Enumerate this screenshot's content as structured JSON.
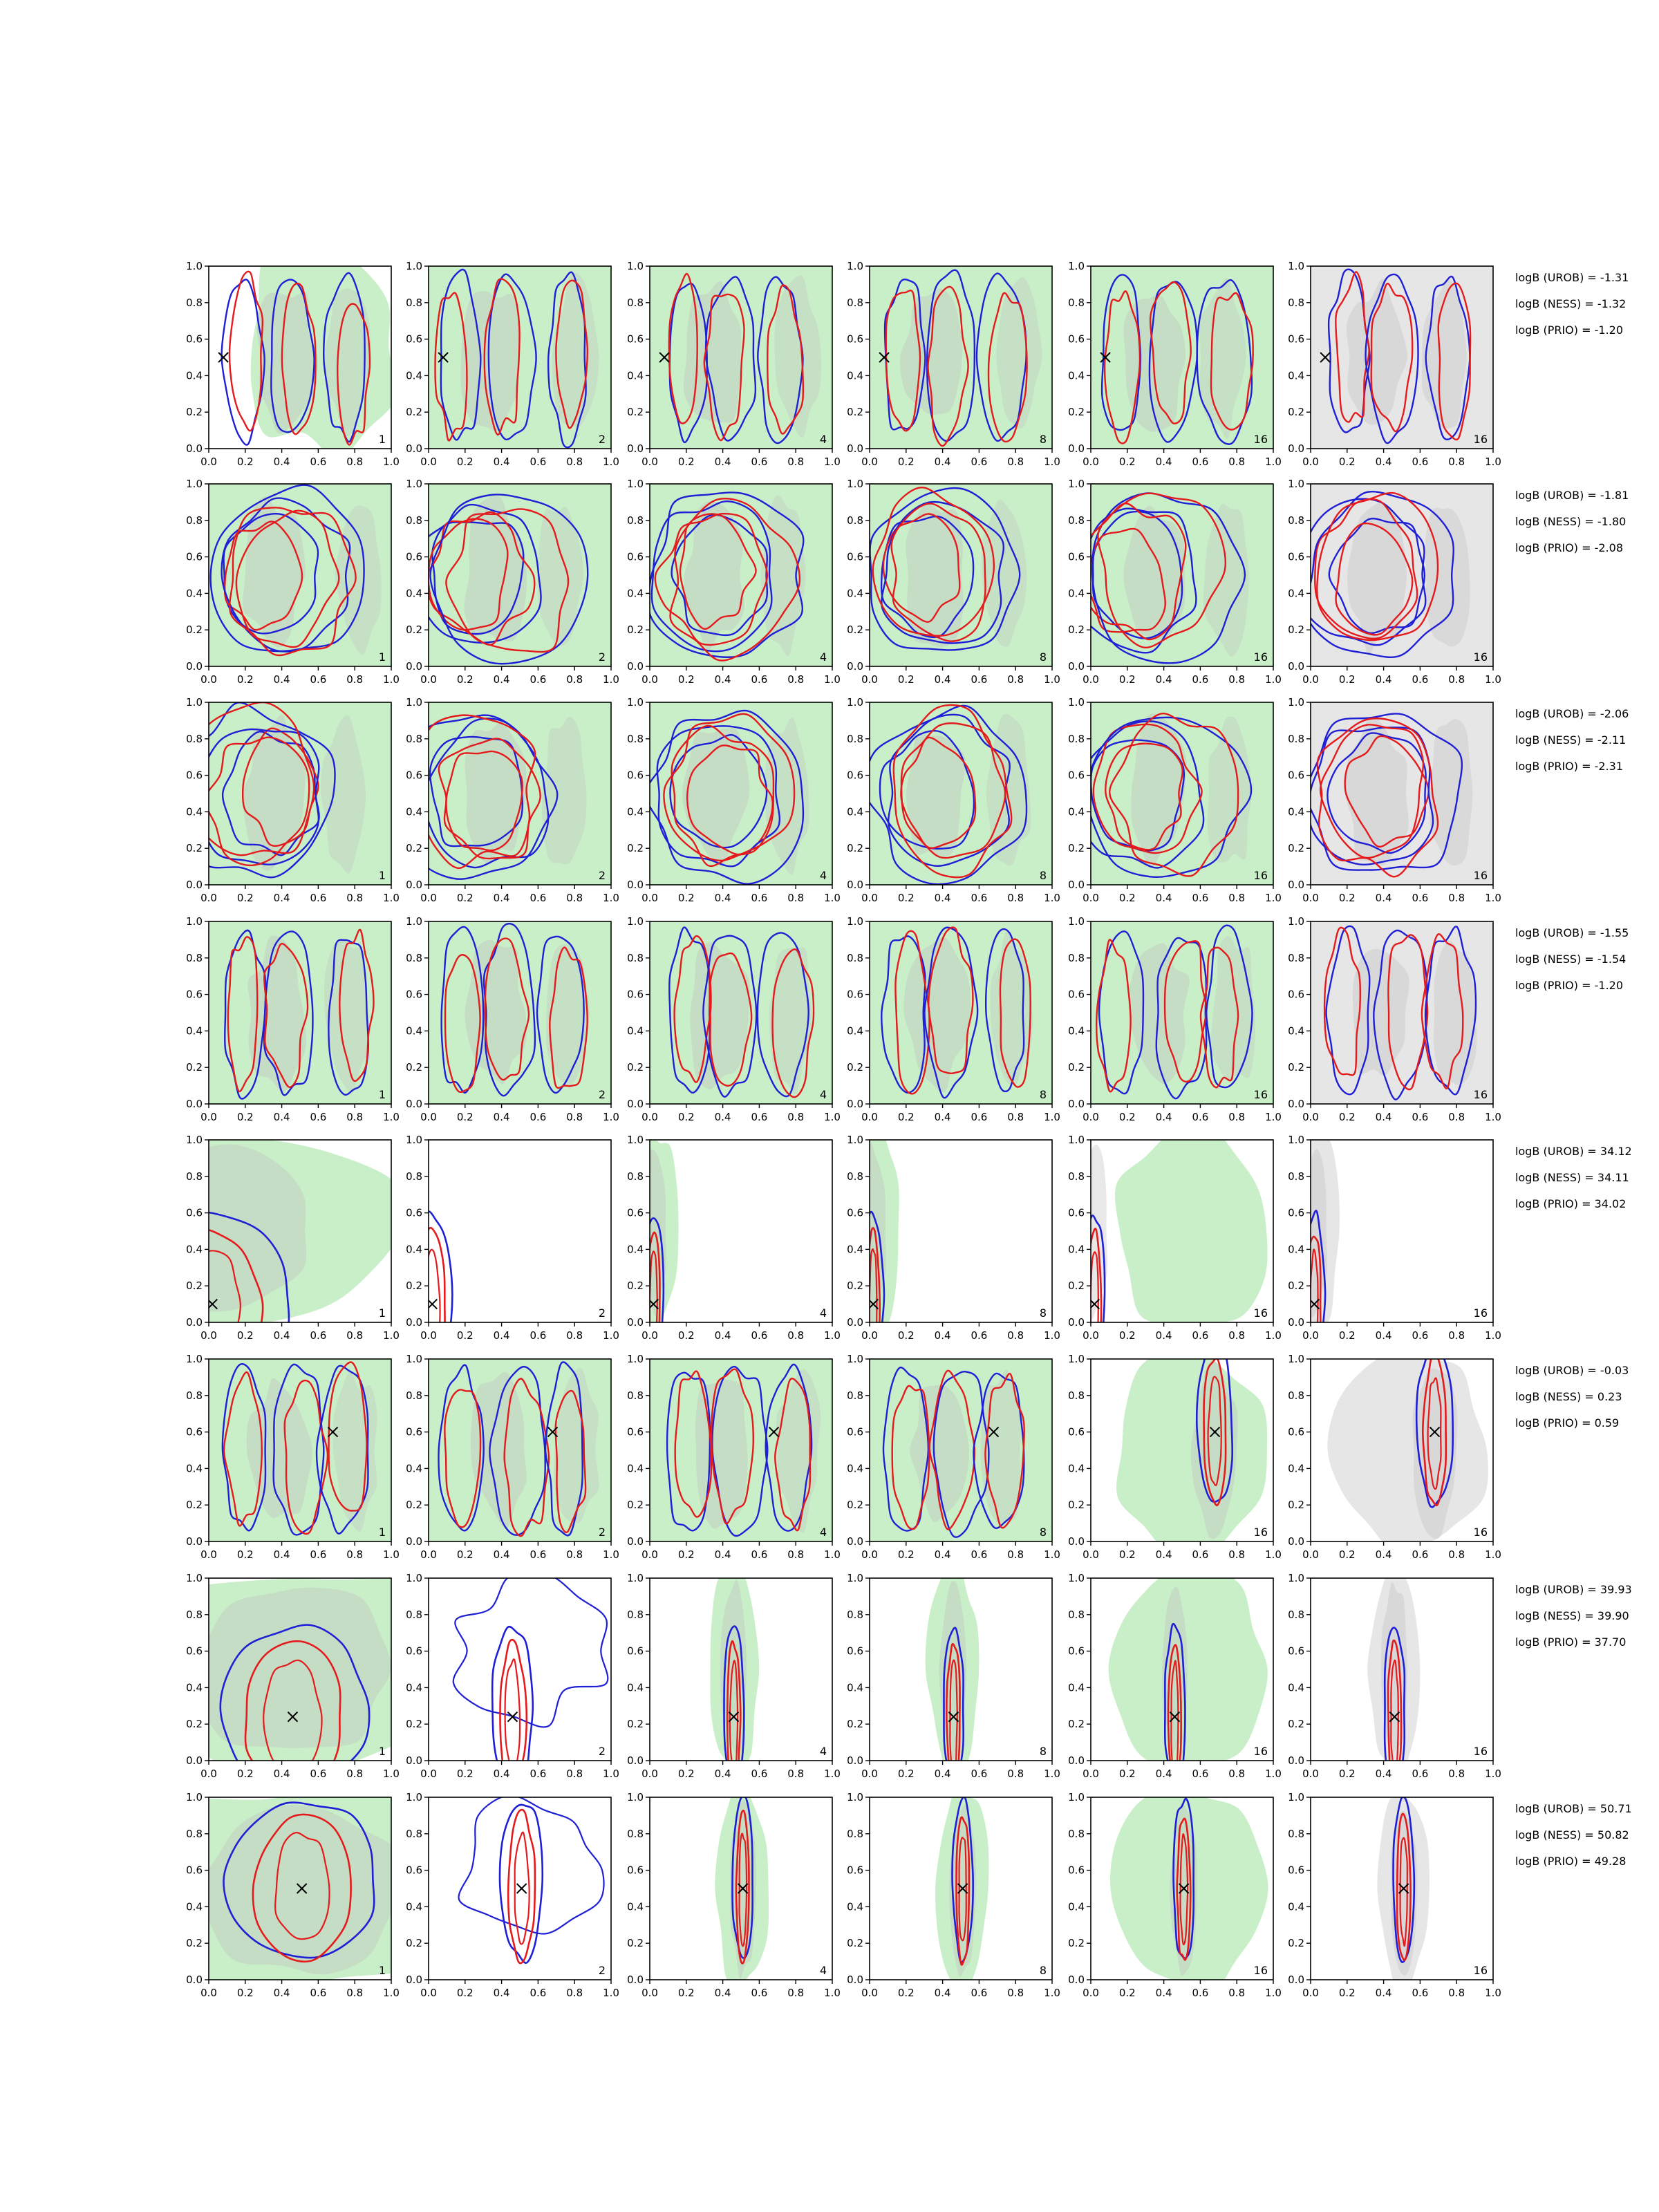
{
  "chart_data": {
    "type": "contour",
    "xlim": [
      0.0,
      1.0
    ],
    "ylim": [
      0.0,
      1.0
    ],
    "ticks": [
      "0.0",
      "0.2",
      "0.4",
      "0.6",
      "0.8",
      "1.0"
    ],
    "panel_counts": [
      "1",
      "2",
      "4",
      "8",
      "16",
      "16"
    ],
    "logb_labels": [
      "logB (UROB)",
      "logB (NESS)",
      "logB (PRIO)"
    ],
    "colors": {
      "red_contour": "#e41a1c",
      "blue_contour": "#1f1fd6",
      "green_fill": "#c9efc9",
      "gray_fill": "#e6e6e6",
      "dark_fill": "#bdbdbd",
      "marker": "#000000"
    },
    "rows": [
      {
        "marker": [
          0.08,
          0.5
        ],
        "logb": [
          "-1.31",
          "-1.32",
          "-1.20"
        ],
        "style": "broad-vertical"
      },
      {
        "marker": null,
        "logb": [
          "-1.81",
          "-1.80",
          "-2.08"
        ],
        "style": "broad-blob"
      },
      {
        "marker": null,
        "logb": [
          "-2.06",
          "-2.11",
          "-2.31"
        ],
        "style": "broad-blob"
      },
      {
        "marker": null,
        "logb": [
          "-1.55",
          "-1.54",
          "-1.20"
        ],
        "style": "broad-vertical"
      },
      {
        "marker": [
          0.02,
          0.1
        ],
        "logb": [
          "34.12",
          "34.11",
          "34.02"
        ],
        "style": "edge-narrow"
      },
      {
        "marker": [
          0.68,
          0.6
        ],
        "logb": [
          "-0.03",
          "0.23",
          "0.59"
        ],
        "style": "converging"
      },
      {
        "marker": [
          0.46,
          0.24
        ],
        "logb": [
          "39.93",
          "39.90",
          "37.70"
        ],
        "style": "narrow"
      },
      {
        "marker": [
          0.51,
          0.5
        ],
        "logb": [
          "50.71",
          "50.82",
          "49.28"
        ],
        "style": "narrow"
      }
    ]
  }
}
